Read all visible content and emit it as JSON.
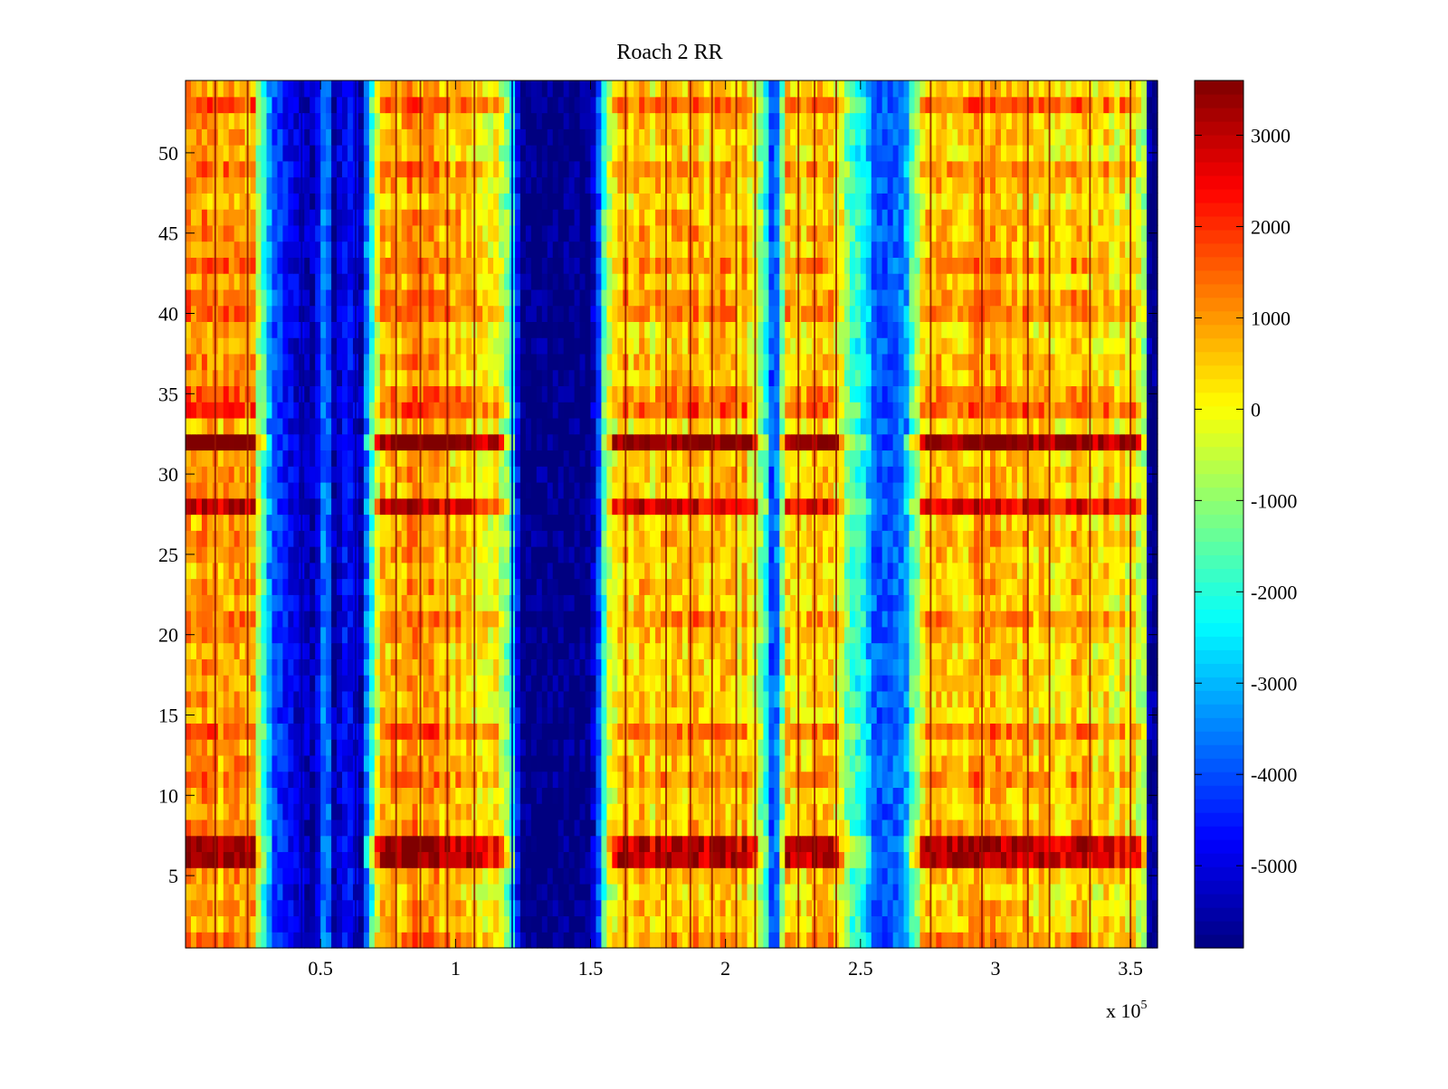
{
  "chart_data": {
    "type": "heatmap",
    "title": "Roach 2 RR",
    "xlabel": "",
    "ylabel": "",
    "x_multiplier_label": "x 10",
    "x_multiplier_exponent": "5",
    "xlim": [
      0,
      3.6
    ],
    "ylim": [
      0.5,
      54.5
    ],
    "x_ticks": [
      0.5,
      1,
      1.5,
      2,
      2.5,
      3,
      3.5
    ],
    "x_tick_labels": [
      "0.5",
      "1",
      "1.5",
      "2",
      "2.5",
      "3",
      "3.5"
    ],
    "y_ticks": [
      5,
      10,
      15,
      20,
      25,
      30,
      35,
      40,
      45,
      50
    ],
    "y_tick_labels": [
      "5",
      "10",
      "15",
      "20",
      "25",
      "30",
      "35",
      "40",
      "45",
      "50"
    ],
    "rows": 54,
    "colorbar": {
      "colormap": "jet",
      "clim": [
        -5900,
        3600
      ],
      "ticks": [
        3000,
        2000,
        1000,
        0,
        -1000,
        -2000,
        -3000,
        -4000,
        -5000
      ],
      "tick_labels": [
        "3000",
        "2000",
        "1000",
        "0",
        "-1000",
        "-2000",
        "-3000",
        "-4000",
        "-5000"
      ]
    },
    "column_profile_x": [
      0.0,
      0.1,
      0.25,
      0.29,
      0.33,
      0.4,
      0.48,
      0.52,
      0.55,
      0.6,
      0.65,
      0.68,
      0.72,
      0.8,
      0.95,
      1.1,
      1.2,
      1.24,
      1.28,
      1.5,
      1.53,
      1.56,
      1.6,
      1.8,
      2.0,
      2.1,
      2.14,
      2.18,
      2.22,
      2.3,
      2.4,
      2.5,
      2.55,
      2.6,
      2.66,
      2.7,
      2.75,
      2.9,
      3.1,
      3.3,
      3.5,
      3.55,
      3.57,
      3.6
    ],
    "column_profile_value": [
      900,
      800,
      700,
      -2000,
      -4000,
      -5000,
      -5500,
      -3000,
      -5500,
      -4500,
      -5500,
      -2500,
      300,
      900,
      800,
      200,
      -800,
      -5900,
      -5900,
      -5900,
      -4000,
      -800,
      400,
      500,
      500,
      300,
      -1500,
      -4800,
      200,
      600,
      100,
      -2000,
      -3800,
      -4000,
      -3500,
      -1000,
      600,
      700,
      600,
      500,
      0,
      -500,
      -5700,
      -5900
    ],
    "row_offsets": [
      {
        "row": 1,
        "delta": 600
      },
      {
        "row": 6,
        "delta": 2600
      },
      {
        "row": 7,
        "delta": 2600
      },
      {
        "row": 11,
        "delta": 800
      },
      {
        "row": 14,
        "delta": 600
      },
      {
        "row": 21,
        "delta": 600
      },
      {
        "row": 28,
        "delta": 2200
      },
      {
        "row": 32,
        "delta": 2800
      },
      {
        "row": 34,
        "delta": 900
      },
      {
        "row": 35,
        "delta": 700
      },
      {
        "row": 40,
        "delta": 900
      },
      {
        "row": 41,
        "delta": 700
      },
      {
        "row": 43,
        "delta": 800
      },
      {
        "row": 49,
        "delta": 700
      },
      {
        "row": 53,
        "delta": 900
      }
    ],
    "vertical_streaks_x": [
      0.11,
      0.23,
      0.43,
      0.63,
      0.78,
      0.87,
      0.97,
      1.07,
      1.21,
      1.63,
      1.78,
      1.87,
      1.95,
      2.04,
      2.11,
      2.27,
      2.33,
      2.41,
      2.76,
      2.95,
      3.12,
      3.2,
      3.35,
      3.5
    ]
  }
}
